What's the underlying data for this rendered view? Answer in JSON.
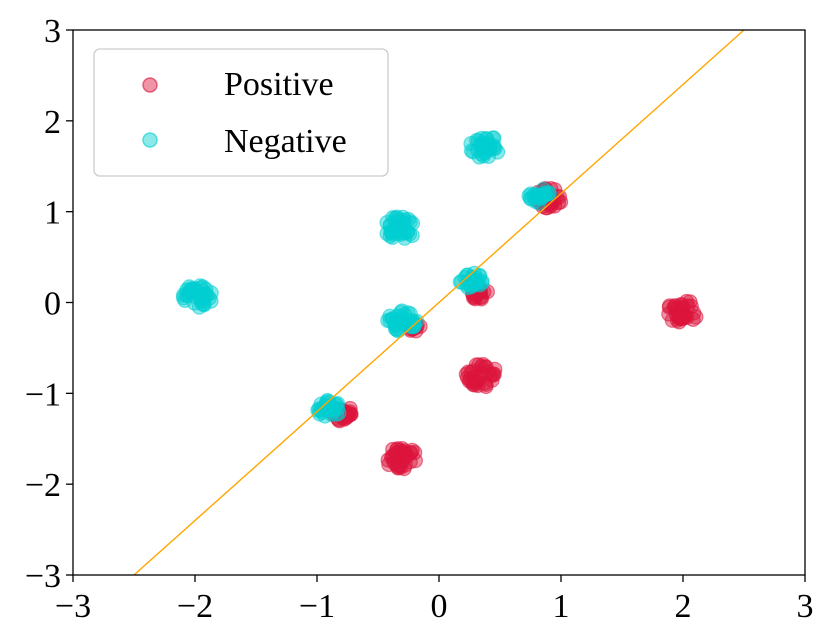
{
  "chart_data": {
    "type": "scatter",
    "title": "",
    "xlabel": "",
    "ylabel": "",
    "xlim": [
      -3,
      3
    ],
    "ylim": [
      -3,
      3
    ],
    "xticks": [
      -3,
      -2,
      -1,
      0,
      1,
      2,
      3
    ],
    "yticks": [
      -3,
      -2,
      -1,
      0,
      1,
      2,
      3
    ],
    "xtick_labels": [
      "−3",
      "−2",
      "−1",
      "0",
      "1",
      "2",
      "3"
    ],
    "ytick_labels": [
      "−3",
      "−2",
      "−1",
      "0",
      "1",
      "2",
      "3"
    ],
    "grid": false,
    "legend_position": "top-left",
    "series": [
      {
        "name": "Positive",
        "color": "#dc143c",
        "opacity": 0.45,
        "clusters": [
          {
            "center": [
              2.0,
              -0.1
            ],
            "spread": 0.13
          },
          {
            "center": [
              0.35,
              -0.8
            ],
            "spread": 0.13
          },
          {
            "center": [
              -0.3,
              -1.72
            ],
            "spread": 0.13
          },
          {
            "center": [
              0.9,
              1.15
            ],
            "spread": 0.11
          },
          {
            "center": [
              0.33,
              0.1
            ],
            "spread": 0.07
          },
          {
            "center": [
              -0.8,
              -1.22
            ],
            "spread": 0.09
          },
          {
            "center": [
              -0.2,
              -0.27
            ],
            "spread": 0.05
          }
        ]
      },
      {
        "name": "Negative",
        "color": "#00ced1",
        "opacity": 0.45,
        "clusters": [
          {
            "center": [
              -1.97,
              0.07
            ],
            "spread": 0.13
          },
          {
            "center": [
              0.37,
              1.72
            ],
            "spread": 0.13
          },
          {
            "center": [
              -0.32,
              0.82
            ],
            "spread": 0.13
          },
          {
            "center": [
              -0.3,
              -0.2
            ],
            "spread": 0.12
          },
          {
            "center": [
              0.27,
              0.25
            ],
            "spread": 0.1
          },
          {
            "center": [
              -0.9,
              -1.17
            ],
            "spread": 0.1
          },
          {
            "center": [
              0.82,
              1.18
            ],
            "spread": 0.09
          }
        ]
      }
    ],
    "decision_line": {
      "color": "#ffa500",
      "points": [
        [
          -2.5,
          -3.0
        ],
        [
          2.5,
          3.0
        ]
      ]
    }
  }
}
